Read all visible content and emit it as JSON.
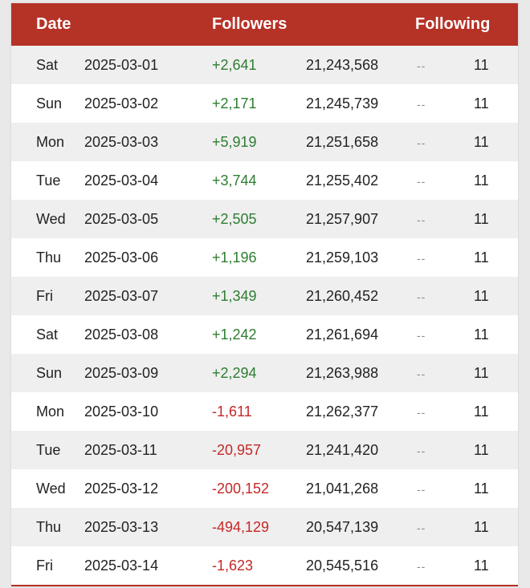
{
  "table": {
    "headers": {
      "date": "Date",
      "followers": "Followers",
      "following": "Following"
    },
    "rows": [
      {
        "day": "Sat",
        "date": "2025-03-01",
        "change": "+2,641",
        "total": "21,243,568",
        "dash": "--",
        "following": "11",
        "trend": "positive"
      },
      {
        "day": "Sun",
        "date": "2025-03-02",
        "change": "+2,171",
        "total": "21,245,739",
        "dash": "--",
        "following": "11",
        "trend": "positive"
      },
      {
        "day": "Mon",
        "date": "2025-03-03",
        "change": "+5,919",
        "total": "21,251,658",
        "dash": "--",
        "following": "11",
        "trend": "positive"
      },
      {
        "day": "Tue",
        "date": "2025-03-04",
        "change": "+3,744",
        "total": "21,255,402",
        "dash": "--",
        "following": "11",
        "trend": "positive"
      },
      {
        "day": "Wed",
        "date": "2025-03-05",
        "change": "+2,505",
        "total": "21,257,907",
        "dash": "--",
        "following": "11",
        "trend": "positive"
      },
      {
        "day": "Thu",
        "date": "2025-03-06",
        "change": "+1,196",
        "total": "21,259,103",
        "dash": "--",
        "following": "11",
        "trend": "positive"
      },
      {
        "day": "Fri",
        "date": "2025-03-07",
        "change": "+1,349",
        "total": "21,260,452",
        "dash": "--",
        "following": "11",
        "trend": "positive"
      },
      {
        "day": "Sat",
        "date": "2025-03-08",
        "change": "+1,242",
        "total": "21,261,694",
        "dash": "--",
        "following": "11",
        "trend": "positive"
      },
      {
        "day": "Sun",
        "date": "2025-03-09",
        "change": "+2,294",
        "total": "21,263,988",
        "dash": "--",
        "following": "11",
        "trend": "positive"
      },
      {
        "day": "Mon",
        "date": "2025-03-10",
        "change": "-1,611",
        "total": "21,262,377",
        "dash": "--",
        "following": "11",
        "trend": "negative"
      },
      {
        "day": "Tue",
        "date": "2025-03-11",
        "change": "-20,957",
        "total": "21,241,420",
        "dash": "--",
        "following": "11",
        "trend": "negative"
      },
      {
        "day": "Wed",
        "date": "2025-03-12",
        "change": "-200,152",
        "total": "21,041,268",
        "dash": "--",
        "following": "11",
        "trend": "negative"
      },
      {
        "day": "Thu",
        "date": "2025-03-13",
        "change": "-494,129",
        "total": "20,547,139",
        "dash": "--",
        "following": "11",
        "trend": "negative"
      },
      {
        "day": "Fri",
        "date": "2025-03-14",
        "change": "-1,623",
        "total": "20,545,516",
        "dash": "--",
        "following": "11",
        "trend": "negative"
      }
    ]
  },
  "colors": {
    "header_bg": "#b53226",
    "positive": "#2e7d32",
    "negative": "#c62828"
  }
}
